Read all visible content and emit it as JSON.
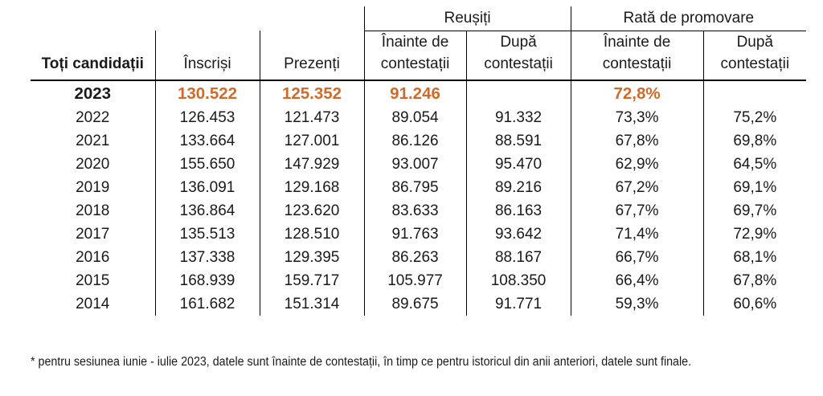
{
  "colors": {
    "accent": "#D06A28",
    "text": "#1a1a1a",
    "border": "#000000"
  },
  "footnote": "* pentru sesiunea iunie - iulie 2023, datele sunt înainte de contestații, în timp ce pentru istoricul din anii anteriori, datele sunt finale.",
  "chart_data": {
    "type": "table",
    "group_headers": [
      {
        "label": "Reușiți",
        "span": 2
      },
      {
        "label": "Rată de promovare",
        "span": 2
      }
    ],
    "columns": [
      "Toți candidații",
      "Înscriși",
      "Prezenți",
      "Înainte de contestații",
      "După contestații",
      "Înainte de contestații",
      "După contestații"
    ],
    "highlight_year": "2023",
    "rows": [
      [
        "2023",
        "130.522",
        "125.352",
        "91.246",
        "",
        "72,8%",
        ""
      ],
      [
        "2022",
        "126.453",
        "121.473",
        "89.054",
        "91.332",
        "73,3%",
        "75,2%"
      ],
      [
        "2021",
        "133.664",
        "127.001",
        "86.126",
        "88.591",
        "67,8%",
        "69,8%"
      ],
      [
        "2020",
        "155.650",
        "147.929",
        "93.007",
        "95.470",
        "62,9%",
        "64,5%"
      ],
      [
        "2019",
        "136.091",
        "129.168",
        "86.795",
        "89.216",
        "67,2%",
        "69,1%"
      ],
      [
        "2018",
        "136.864",
        "123.620",
        "83.633",
        "86.163",
        "67,7%",
        "69,7%"
      ],
      [
        "2017",
        "135.513",
        "128.510",
        "91.763",
        "93.642",
        "71,4%",
        "72,9%"
      ],
      [
        "2016",
        "137.338",
        "129.395",
        "86.263",
        "88.167",
        "66,7%",
        "68,1%"
      ],
      [
        "2015",
        "168.939",
        "159.717",
        "105.977",
        "108.350",
        "66,4%",
        "67,8%"
      ],
      [
        "2014",
        "161.682",
        "151.314",
        "89.675",
        "91.771",
        "59,3%",
        "60,6%"
      ]
    ]
  }
}
